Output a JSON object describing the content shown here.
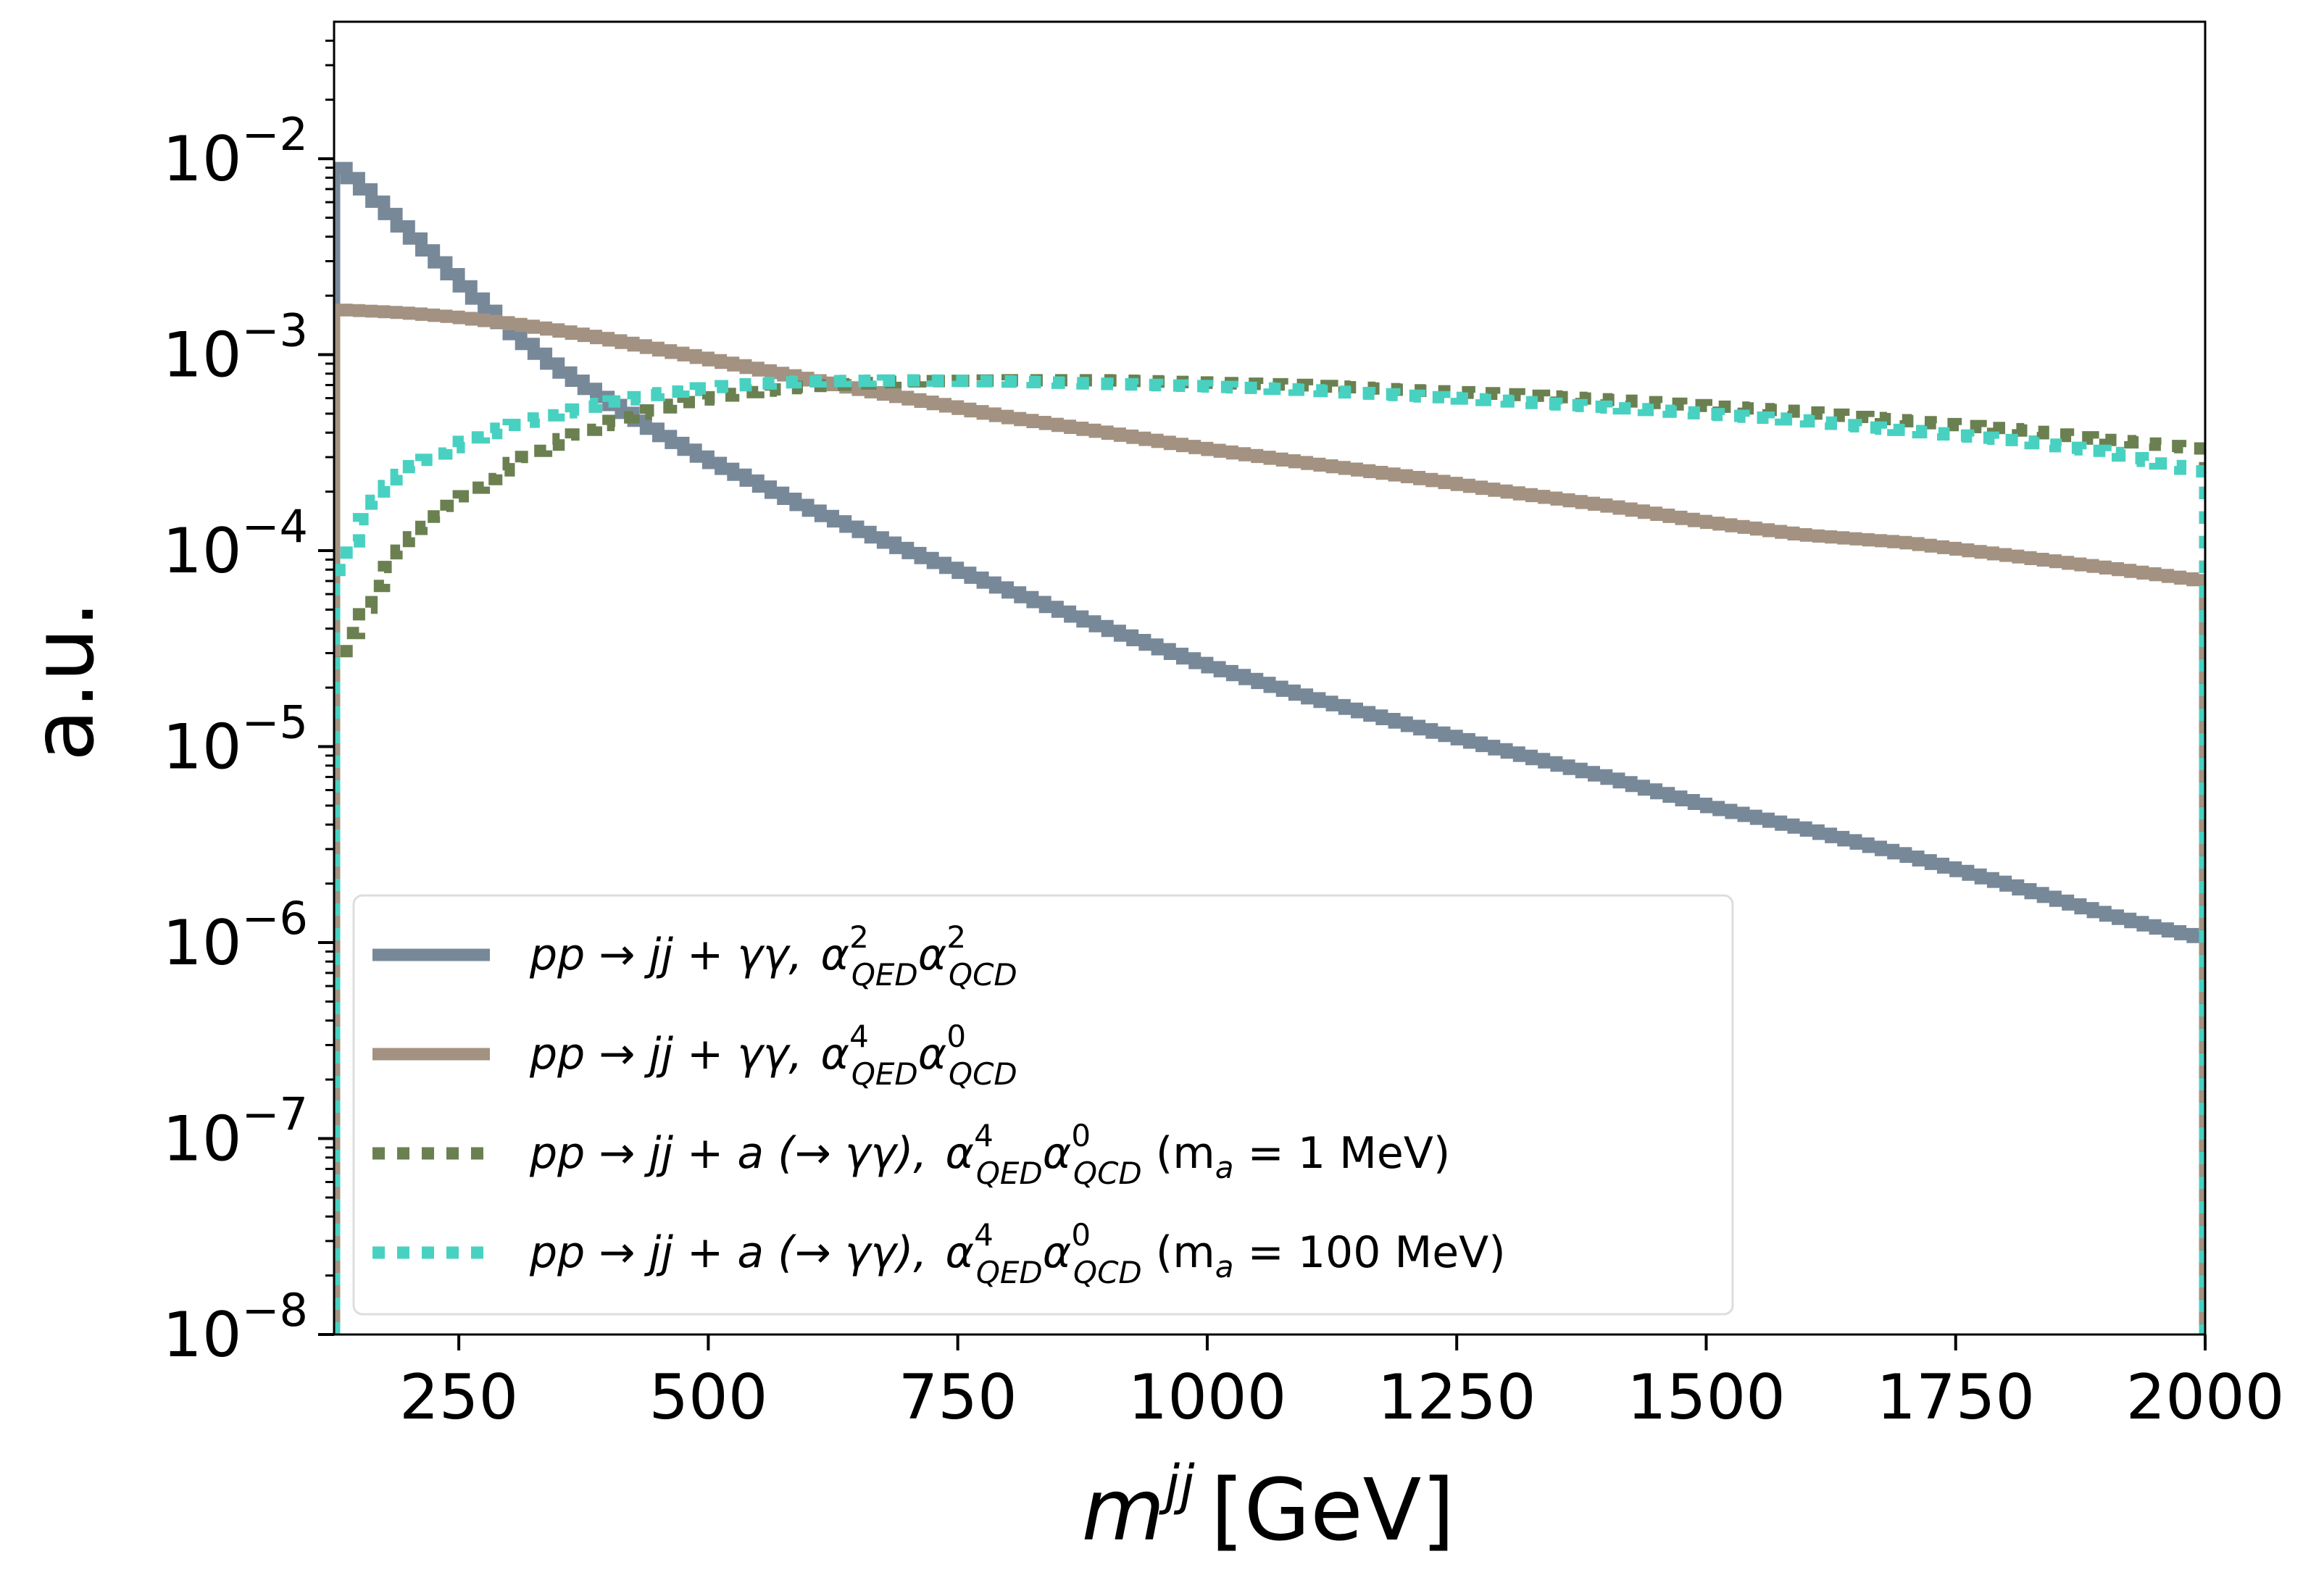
{
  "chart_data": {
    "type": "line",
    "style": "step histogram",
    "xlabel": "m^jj [GeV]",
    "xlabel_main": "m",
    "xlabel_sup": "jj",
    "xlabel_unit": "[GeV]",
    "ylabel": "a.u.",
    "xlim": [
      125,
      2000
    ],
    "ylim": [
      1e-08,
      0.05
    ],
    "yscale": "log",
    "x_ticks": [
      "250",
      "500",
      "750",
      "1000",
      "1250",
      "1500",
      "1750",
      "2000"
    ],
    "x_tick_values": [
      250,
      500,
      750,
      1000,
      1250,
      1500,
      1750,
      2000
    ],
    "y_ticks": [
      {
        "base": "10",
        "exp": "−2",
        "value": 0.01
      },
      {
        "base": "10",
        "exp": "−3",
        "value": 0.001
      },
      {
        "base": "10",
        "exp": "−4",
        "value": 0.0001
      },
      {
        "base": "10",
        "exp": "−5",
        "value": 1e-05
      },
      {
        "base": "10",
        "exp": "−6",
        "value": 1e-06
      },
      {
        "base": "10",
        "exp": "−7",
        "value": 1e-07
      },
      {
        "base": "10",
        "exp": "−8",
        "value": 1e-08
      }
    ],
    "grid": false,
    "legend_position": "lower-left",
    "series": [
      {
        "name": "pp → jj + γγ, α²_QED α²_QCD",
        "legend_label": {
          "proc": "pp → jj + γγ, ",
          "a1sup": "2",
          "a1sub": "QED",
          "a2sup": "2",
          "a2sub": "QCD",
          "suffix": ""
        },
        "color": "#778899",
        "dash": "solid",
        "x": [
          125,
          150,
          200,
          250,
          300,
          350,
          400,
          450,
          500,
          550,
          600,
          700,
          800,
          900,
          1000,
          1100,
          1200,
          1300,
          1400,
          1500,
          1600,
          1700,
          1800,
          1900,
          1950,
          2000
        ],
        "y": [
          0.0095,
          0.0075,
          0.0042,
          0.0024,
          0.00135,
          0.00085,
          0.00058,
          0.0004,
          0.00029,
          0.00022,
          0.000165,
          0.0001,
          6.3e-05,
          4e-05,
          2.6e-05,
          1.8e-05,
          1.3e-05,
          9.5e-06,
          7e-06,
          5e-06,
          3.8e-06,
          2.8e-06,
          2e-06,
          1.4e-06,
          1.2e-06,
          1.05e-06
        ]
      },
      {
        "name": "pp → jj + γγ, α⁴_QED α⁰_QCD",
        "legend_label": {
          "proc": "pp → jj + γγ, ",
          "a1sup": "4",
          "a1sub": "QED",
          "a2sup": "0",
          "a2sub": "QCD",
          "suffix": ""
        },
        "color": "#a39281",
        "dash": "solid",
        "x": [
          125,
          150,
          200,
          250,
          300,
          350,
          400,
          500,
          600,
          700,
          800,
          900,
          1000,
          1100,
          1200,
          1300,
          1400,
          1500,
          1600,
          1700,
          1800,
          1900,
          2000
        ],
        "y": [
          0.0017,
          0.00168,
          0.00163,
          0.00155,
          0.00145,
          0.00133,
          0.0012,
          0.00095,
          0.00075,
          0.0006,
          0.00048,
          0.0004,
          0.00033,
          0.00028,
          0.00024,
          0.0002,
          0.00017,
          0.00014,
          0.00012,
          0.00011,
          9.5e-05,
          8.2e-05,
          7e-05
        ]
      },
      {
        "name": "pp → jj + a (→ γγ), α⁴_QED α⁰_QCD (m_a = 1 MeV)",
        "legend_label": {
          "proc": "pp → jj + a (→ γγ), ",
          "a1sup": "4",
          "a1sub": "QED",
          "a2sup": "0",
          "a2sub": "QCD",
          "suffix": " (m",
          "msub": "a",
          "mval": " = 1 MeV)"
        },
        "color": "#6b8050",
        "dash": "dotted",
        "x": [
          125,
          135,
          150,
          175,
          200,
          250,
          300,
          350,
          400,
          450,
          500,
          550,
          600,
          700,
          800,
          900,
          1000,
          1100,
          1200,
          1300,
          1400,
          1500,
          1600,
          1700,
          1800,
          1900,
          2000
        ],
        "y": [
          2.2e-05,
          3e-05,
          4.5e-05,
          7.5e-05,
          0.00011,
          0.00018,
          0.00027,
          0.00036,
          0.00045,
          0.00053,
          0.0006,
          0.00065,
          0.00069,
          0.00073,
          0.00074,
          0.00074,
          0.00072,
          0.0007,
          0.00066,
          0.00063,
          0.00059,
          0.00055,
          0.00051,
          0.00046,
          0.00042,
          0.00037,
          0.00033
        ]
      },
      {
        "name": "pp → jj + a (→ γγ), α⁴_QED α⁰_QCD (m_a = 100 MeV)",
        "legend_label": {
          "proc": "pp → jj + a (→ γγ), ",
          "a1sup": "4",
          "a1sub": "QED",
          "a2sup": "0",
          "a2sub": "QCD",
          "suffix": " (m",
          "msub": "a",
          "mval": " = 100 MeV)"
        },
        "color": "#48d1c1",
        "dash": "dotted",
        "x": [
          125,
          135,
          150,
          175,
          200,
          250,
          300,
          350,
          400,
          450,
          500,
          550,
          600,
          700,
          800,
          900,
          1000,
          1100,
          1200,
          1300,
          1400,
          1500,
          1600,
          1700,
          1800,
          1900,
          2000
        ],
        "y": [
          6.5e-05,
          9e-05,
          0.00013,
          0.0002,
          0.00026,
          0.00035,
          0.00043,
          0.0005,
          0.00057,
          0.00063,
          0.00068,
          0.00071,
          0.00073,
          0.00074,
          0.00073,
          0.00071,
          0.00069,
          0.00066,
          0.00062,
          0.00058,
          0.00054,
          0.0005,
          0.00046,
          0.00041,
          0.00037,
          0.00032,
          0.00025
        ]
      }
    ]
  }
}
